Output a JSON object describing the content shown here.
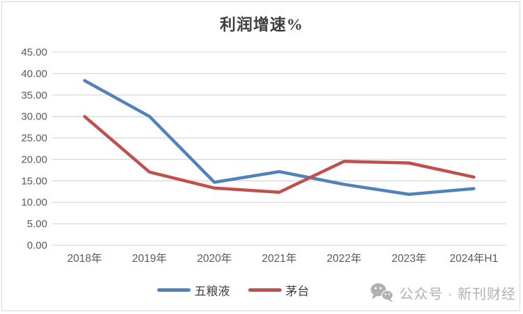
{
  "chart_data": {
    "type": "line",
    "title": "利润增速%",
    "categories": [
      "2018年",
      "2019年",
      "2020年",
      "2021年",
      "2022年",
      "2023年",
      "2024年H1"
    ],
    "series": [
      {
        "name": "五粮液",
        "color": "#4F81BD",
        "values": [
          38.36,
          30.02,
          14.67,
          17.15,
          14.17,
          11.86,
          13.19
        ]
      },
      {
        "name": "茅台",
        "color": "#C0504D",
        "values": [
          30.0,
          17.05,
          13.33,
          12.34,
          19.55,
          19.16,
          15.88
        ]
      }
    ],
    "ylim": [
      0,
      45
    ],
    "ytick_step": 5,
    "ytick_labels": [
      "0.00",
      "5.00",
      "10.00",
      "15.00",
      "20.00",
      "25.00",
      "30.00",
      "35.00",
      "40.00",
      "45.00"
    ],
    "xlabel": "",
    "ylabel": "",
    "grid": "horizontal",
    "legend_position": "bottom",
    "gridline_color": "#d9d9d9",
    "axis_text_color": "#595959"
  },
  "watermark": {
    "icon": "wechat-icon",
    "text": "公众号 · 新刊财经"
  }
}
